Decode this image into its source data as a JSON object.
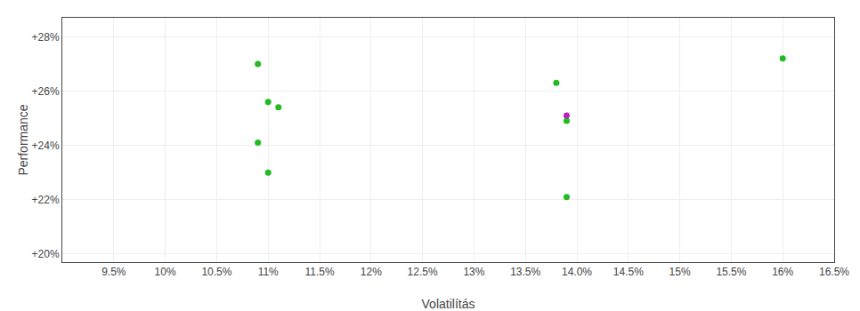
{
  "chart_data": {
    "type": "scatter",
    "xlabel": "Volatilítás",
    "ylabel": "Performance",
    "xlim": [
      0.09,
      0.165
    ],
    "ylim": [
      0.197,
      0.287
    ],
    "xticks": [
      {
        "value": 0.095,
        "label": "9.5%"
      },
      {
        "value": 0.1,
        "label": "10%"
      },
      {
        "value": 0.105,
        "label": "10.5%"
      },
      {
        "value": 0.11,
        "label": "11%"
      },
      {
        "value": 0.115,
        "label": "11.5%"
      },
      {
        "value": 0.12,
        "label": "12%"
      },
      {
        "value": 0.125,
        "label": "12.5%"
      },
      {
        "value": 0.13,
        "label": "13%"
      },
      {
        "value": 0.135,
        "label": "13.5%"
      },
      {
        "value": 0.14,
        "label": "14.0%"
      },
      {
        "value": 0.145,
        "label": "14.5%"
      },
      {
        "value": 0.15,
        "label": "15%"
      },
      {
        "value": 0.155,
        "label": "15.5%"
      },
      {
        "value": 0.16,
        "label": "16%"
      },
      {
        "value": 0.165,
        "label": "16.5%"
      }
    ],
    "yticks": [
      {
        "value": 0.2,
        "label": "+20%"
      },
      {
        "value": 0.22,
        "label": "+22%"
      },
      {
        "value": 0.24,
        "label": "+24%"
      },
      {
        "value": 0.26,
        "label": "+26%"
      },
      {
        "value": 0.28,
        "label": "+28%"
      }
    ],
    "grid": true,
    "series": [
      {
        "color": "#22bb22",
        "x": [
          0.109,
          0.11,
          0.111,
          0.109,
          0.11,
          0.138,
          0.139,
          0.139,
          0.16
        ],
        "values": [
          0.27,
          0.256,
          0.254,
          0.241,
          0.23,
          0.263,
          0.249,
          0.221,
          0.272
        ]
      },
      {
        "color": "#bb22bb",
        "x": [
          0.139
        ],
        "values": [
          0.251
        ]
      }
    ]
  }
}
